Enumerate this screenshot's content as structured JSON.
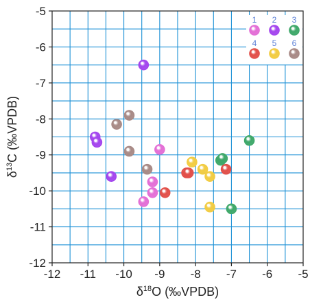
{
  "chart_data": {
    "type": "scatter",
    "xlabel_parts": {
      "pre": "δ",
      "sup": "18",
      "post": "O (‰VPDB)"
    },
    "ylabel_parts": {
      "pre": "δ",
      "sup": "13",
      "post": "C (‰VPDB)"
    },
    "xlim": [
      -12,
      -5
    ],
    "ylim": [
      -12,
      -5
    ],
    "x_ticks": [
      -12,
      -11,
      -10,
      -9,
      -8,
      -7,
      -6,
      -5
    ],
    "y_ticks": [
      -5,
      -6,
      -7,
      -8,
      -9,
      -10,
      -11,
      -12
    ],
    "x_tick_labels": [
      "-12",
      "-11",
      "-10",
      "-9",
      "-8",
      "-7",
      "-6",
      "-5"
    ],
    "y_tick_labels": [
      "-5",
      "-6",
      "-7",
      "-8",
      "-9",
      "-10",
      "-11",
      "-12"
    ],
    "grid": true,
    "legend_position": "top-right",
    "colors": {
      "grid": "#1a8fd6",
      "axis": "#222222"
    },
    "series": [
      {
        "name": "1",
        "color": "#e36fd6",
        "points": [
          [
            -9.0,
            -8.85
          ],
          [
            -9.2,
            -9.75
          ],
          [
            -9.2,
            -10.05
          ],
          [
            -9.45,
            -10.3
          ]
        ]
      },
      {
        "name": "2",
        "color": "#a446ee",
        "points": [
          [
            -9.45,
            -6.5
          ],
          [
            -10.8,
            -8.5
          ],
          [
            -10.75,
            -8.65
          ],
          [
            -10.35,
            -9.6
          ]
        ]
      },
      {
        "name": "3",
        "color": "#3fa86a",
        "points": [
          [
            -6.5,
            -8.6
          ],
          [
            -7.3,
            -9.15
          ],
          [
            -7.25,
            -9.1
          ],
          [
            -7.0,
            -10.5
          ]
        ]
      },
      {
        "name": "4",
        "color": "#e2504a",
        "points": [
          [
            -7.15,
            -9.4
          ],
          [
            -8.25,
            -9.5
          ],
          [
            -8.2,
            -9.5
          ],
          [
            -8.85,
            -10.05
          ]
        ]
      },
      {
        "name": "5",
        "color": "#f2cc42",
        "points": [
          [
            -8.1,
            -9.2
          ],
          [
            -7.8,
            -9.4
          ],
          [
            -7.6,
            -9.6
          ],
          [
            -7.6,
            -10.45
          ]
        ]
      },
      {
        "name": "6",
        "color": "#a88a86",
        "points": [
          [
            -9.85,
            -7.9
          ],
          [
            -10.2,
            -8.15
          ],
          [
            -9.85,
            -8.9
          ],
          [
            -9.35,
            -9.4
          ]
        ]
      }
    ]
  }
}
